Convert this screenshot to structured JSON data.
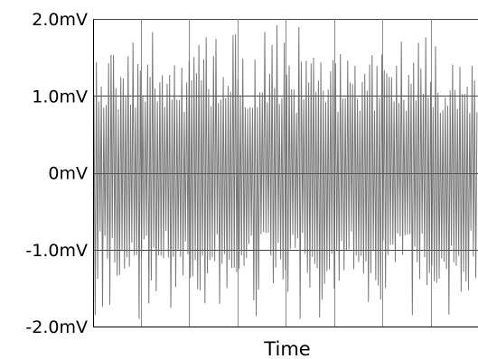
{
  "chart_data": {
    "type": "line",
    "title": "",
    "xlabel": "Time",
    "ylabel": "",
    "ylim": [
      -2.0,
      2.0
    ],
    "ytick_values": [
      2.0,
      1.0,
      0.0,
      -1.0,
      -2.0
    ],
    "yticks": [
      "2.0mV",
      "1.0mV",
      "0mV",
      "-1.0mV",
      "-2.0mV"
    ],
    "grid": true,
    "legend": "none",
    "series": [
      {
        "color": "#606060",
        "description_values": {
          "typical_peak_envelope": [
            -1.55,
            1.55
          ],
          "max_peak": 1.92,
          "min_peak": -1.95,
          "dense_core_band": [
            -1.05,
            1.05
          ]
        }
      }
    ],
    "colors": {
      "signal": "#606060",
      "grid": "#444444",
      "axis": "#000000",
      "background": "#ffffff"
    }
  }
}
